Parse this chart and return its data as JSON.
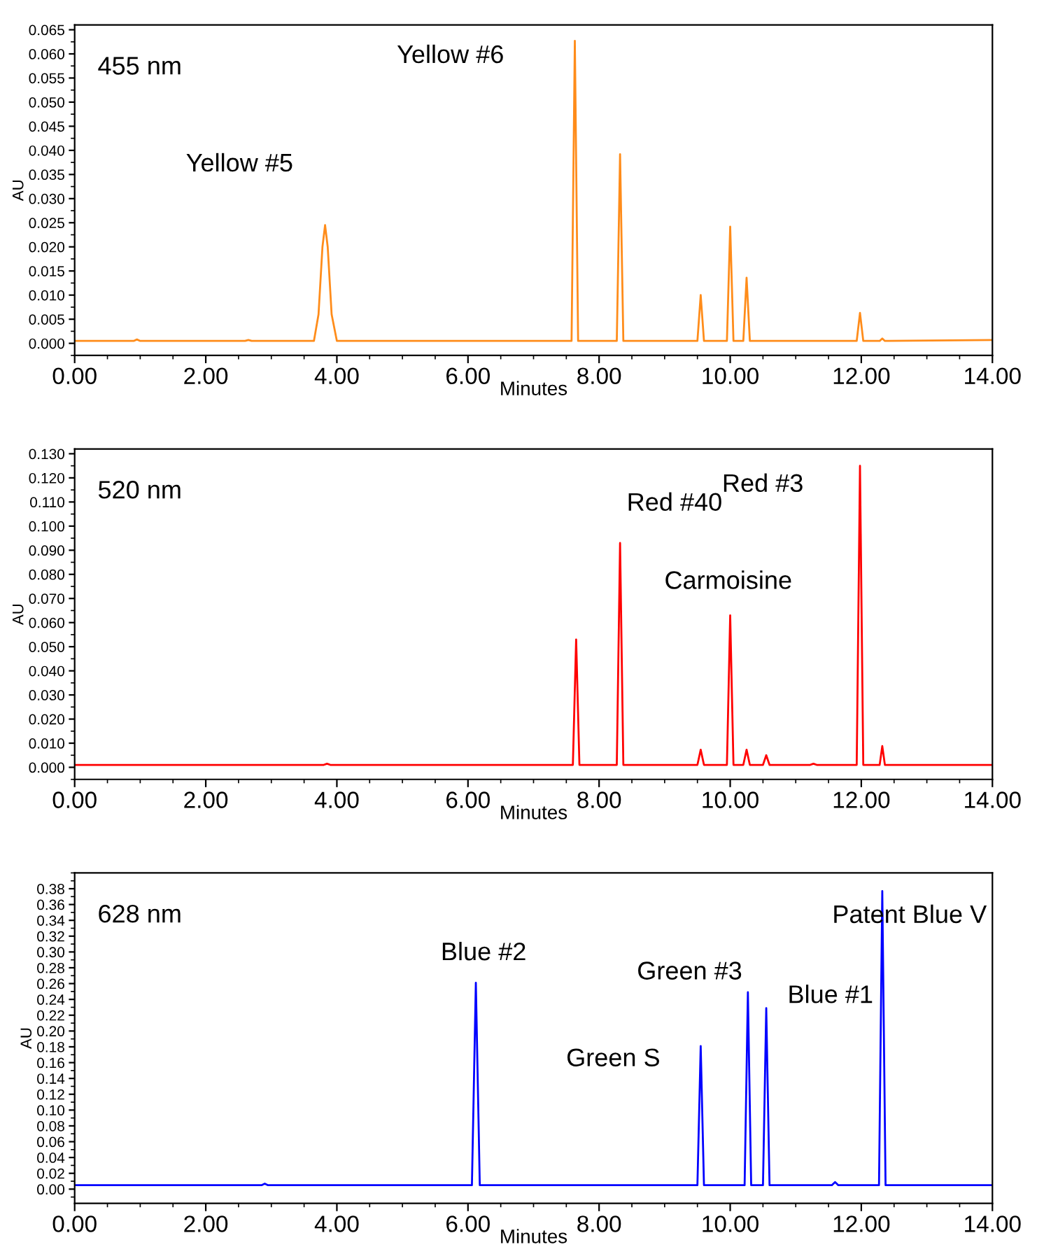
{
  "chart_data": [
    {
      "type": "line",
      "xlabel": "Minutes",
      "ylabel": "AU",
      "annotations": [
        "455 nm",
        {
          "text": "Yellow #5",
          "x": 3.82,
          "y": 0.0245
        },
        {
          "text": "Yellow #6",
          "x": 7.63,
          "y": 0.0627
        }
      ],
      "x": [
        0,
        0.9,
        0.95,
        1.0,
        2.6,
        2.65,
        2.7,
        3.65,
        3.72,
        3.78,
        3.82,
        3.86,
        3.92,
        4.0,
        7.58,
        7.63,
        7.68,
        8.27,
        8.32,
        8.37,
        9.5,
        9.55,
        9.6,
        9.95,
        10.0,
        10.05,
        10.2,
        10.25,
        10.3,
        11.93,
        11.98,
        12.03,
        12.28,
        12.32,
        12.36,
        14.0
      ],
      "series": [
        {
          "color": "#ff8c1a",
          "values": [
            0.0005,
            0.0005,
            0.0008,
            0.0005,
            0.0005,
            0.0007,
            0.0005,
            0.0005,
            0.006,
            0.02,
            0.0245,
            0.02,
            0.006,
            0.0005,
            0.0005,
            0.0627,
            0.0005,
            0.0005,
            0.0392,
            0.0005,
            0.0005,
            0.01,
            0.0005,
            0.0005,
            0.0242,
            0.0005,
            0.0005,
            0.0136,
            0.0005,
            0.0005,
            0.0063,
            0.0005,
            0.0005,
            0.001,
            0.0005,
            0.0007
          ]
        }
      ],
      "xlim": [
        0,
        14
      ],
      "xticks": [
        {
          "value": 0,
          "label": "0.00"
        },
        {
          "value": 2,
          "label": "2.00"
        },
        {
          "value": 4,
          "label": "4.00"
        },
        {
          "value": 6,
          "label": "6.00"
        },
        {
          "value": 8,
          "label": "8.00"
        },
        {
          "value": 10,
          "label": "10.00"
        },
        {
          "value": 12,
          "label": "12.00"
        },
        {
          "value": 14,
          "label": "14.00"
        }
      ],
      "ylim": [
        -0.0025,
        0.066
      ],
      "yticks": [
        {
          "value": 0,
          "label": "0.000"
        },
        {
          "value": 0.005,
          "label": "0.005"
        },
        {
          "value": 0.01,
          "label": "0.010"
        },
        {
          "value": 0.015,
          "label": "0.015"
        },
        {
          "value": 0.02,
          "label": "0.020"
        },
        {
          "value": 0.025,
          "label": "0.025"
        },
        {
          "value": 0.03,
          "label": "0.030"
        },
        {
          "value": 0.035,
          "label": "0.035"
        },
        {
          "value": 0.04,
          "label": "0.040"
        },
        {
          "value": 0.045,
          "label": "0.045"
        },
        {
          "value": 0.05,
          "label": "0.050"
        },
        {
          "value": 0.055,
          "label": "0.055"
        },
        {
          "value": 0.06,
          "label": "0.060"
        },
        {
          "value": 0.065,
          "label": "0.065"
        }
      ],
      "grid": false,
      "marker": "none",
      "line_style": "solid"
    },
    {
      "type": "line",
      "xlabel": "Minutes",
      "ylabel": "AU",
      "annotations": [
        "520 nm",
        {
          "text": "Red #40",
          "x": 8.32,
          "y": 0.093
        },
        {
          "text": "Carmoisine",
          "x": 10.0,
          "y": 0.063
        },
        {
          "text": "Red #3",
          "x": 11.98,
          "y": 0.125
        }
      ],
      "x": [
        0,
        3.8,
        3.85,
        3.9,
        7.6,
        7.65,
        7.7,
        8.27,
        8.32,
        8.37,
        9.5,
        9.55,
        9.6,
        9.95,
        10.0,
        10.05,
        10.2,
        10.25,
        10.3,
        10.5,
        10.55,
        10.6,
        11.22,
        11.27,
        11.32,
        11.93,
        11.98,
        12.03,
        12.28,
        12.32,
        12.36,
        14.0
      ],
      "series": [
        {
          "color": "#ff0000",
          "values": [
            0.001,
            0.001,
            0.0015,
            0.001,
            0.001,
            0.053,
            0.001,
            0.001,
            0.093,
            0.001,
            0.001,
            0.0073,
            0.001,
            0.001,
            0.063,
            0.001,
            0.001,
            0.0073,
            0.001,
            0.001,
            0.005,
            0.001,
            0.001,
            0.0015,
            0.001,
            0.001,
            0.125,
            0.001,
            0.001,
            0.0088,
            0.001,
            0.001
          ]
        }
      ],
      "xlim": [
        0,
        14
      ],
      "xticks": [
        {
          "value": 0,
          "label": "0.00"
        },
        {
          "value": 2,
          "label": "2.00"
        },
        {
          "value": 4,
          "label": "4.00"
        },
        {
          "value": 6,
          "label": "6.00"
        },
        {
          "value": 8,
          "label": "8.00"
        },
        {
          "value": 10,
          "label": "10.00"
        },
        {
          "value": 12,
          "label": "12.00"
        },
        {
          "value": 14,
          "label": "14.00"
        }
      ],
      "ylim": [
        -0.005,
        0.132
      ],
      "yticks": [
        {
          "value": 0,
          "label": "0.000"
        },
        {
          "value": 0.01,
          "label": "0.010"
        },
        {
          "value": 0.02,
          "label": "0.020"
        },
        {
          "value": 0.03,
          "label": "0.030"
        },
        {
          "value": 0.04,
          "label": "0.040"
        },
        {
          "value": 0.05,
          "label": "0.050"
        },
        {
          "value": 0.06,
          "label": "0.060"
        },
        {
          "value": 0.07,
          "label": "0.070"
        },
        {
          "value": 0.08,
          "label": "0.080"
        },
        {
          "value": 0.09,
          "label": "0.090"
        },
        {
          "value": 0.1,
          "label": "0.100"
        },
        {
          "value": 0.11,
          "label": "0.110"
        },
        {
          "value": 0.12,
          "label": "0.120"
        },
        {
          "value": 0.13,
          "label": "0.130"
        }
      ],
      "grid": false,
      "marker": "none",
      "line_style": "solid"
    },
    {
      "type": "line",
      "xlabel": "Minutes",
      "ylabel": "AU",
      "annotations": [
        "628 nm",
        {
          "text": "Blue #2",
          "x": 6.12,
          "y": 0.261
        },
        {
          "text": "Green S",
          "x": 9.55,
          "y": 0.181
        },
        {
          "text": "Green #3",
          "x": 10.27,
          "y": 0.249
        },
        {
          "text": "Blue #1",
          "x": 10.55,
          "y": 0.229
        },
        {
          "text": "Patent Blue V",
          "x": 12.32,
          "y": 0.377
        }
      ],
      "x": [
        0,
        2.85,
        2.9,
        2.95,
        6.06,
        6.12,
        6.18,
        9.5,
        9.55,
        9.6,
        10.22,
        10.27,
        10.32,
        10.5,
        10.55,
        10.6,
        11.55,
        11.6,
        11.65,
        12.27,
        12.32,
        12.37,
        14.0
      ],
      "series": [
        {
          "color": "#0000ff",
          "values": [
            0.005,
            0.005,
            0.007,
            0.005,
            0.005,
            0.261,
            0.005,
            0.005,
            0.181,
            0.005,
            0.005,
            0.249,
            0.005,
            0.005,
            0.229,
            0.005,
            0.005,
            0.009,
            0.005,
            0.005,
            0.377,
            0.005,
            0.005
          ]
        }
      ],
      "xlim": [
        0,
        14
      ],
      "xticks": [
        {
          "value": 0,
          "label": "0.00"
        },
        {
          "value": 2,
          "label": "2.00"
        },
        {
          "value": 4,
          "label": "4.00"
        },
        {
          "value": 6,
          "label": "6.00"
        },
        {
          "value": 8,
          "label": "8.00"
        },
        {
          "value": 10,
          "label": "10.00"
        },
        {
          "value": 12,
          "label": "12.00"
        },
        {
          "value": 14,
          "label": "14.00"
        }
      ],
      "ylim": [
        -0.018,
        0.4
      ],
      "yticks": [
        {
          "value": 0,
          "label": "0.00"
        },
        {
          "value": 0.02,
          "label": "0.02"
        },
        {
          "value": 0.04,
          "label": "0.04"
        },
        {
          "value": 0.06,
          "label": "0.06"
        },
        {
          "value": 0.08,
          "label": "0.08"
        },
        {
          "value": 0.1,
          "label": "0.10"
        },
        {
          "value": 0.12,
          "label": "0.12"
        },
        {
          "value": 0.14,
          "label": "0.14"
        },
        {
          "value": 0.16,
          "label": "0.16"
        },
        {
          "value": 0.18,
          "label": "0.18"
        },
        {
          "value": 0.2,
          "label": "0.20"
        },
        {
          "value": 0.22,
          "label": "0.22"
        },
        {
          "value": 0.24,
          "label": "0.24"
        },
        {
          "value": 0.26,
          "label": "0.26"
        },
        {
          "value": 0.28,
          "label": "0.28"
        },
        {
          "value": 0.3,
          "label": "0.30"
        },
        {
          "value": 0.32,
          "label": "0.32"
        },
        {
          "value": 0.34,
          "label": "0.34"
        },
        {
          "value": 0.36,
          "label": "0.36"
        },
        {
          "value": 0.38,
          "label": "0.38"
        }
      ],
      "grid": false,
      "marker": "none",
      "line_style": "solid"
    }
  ]
}
